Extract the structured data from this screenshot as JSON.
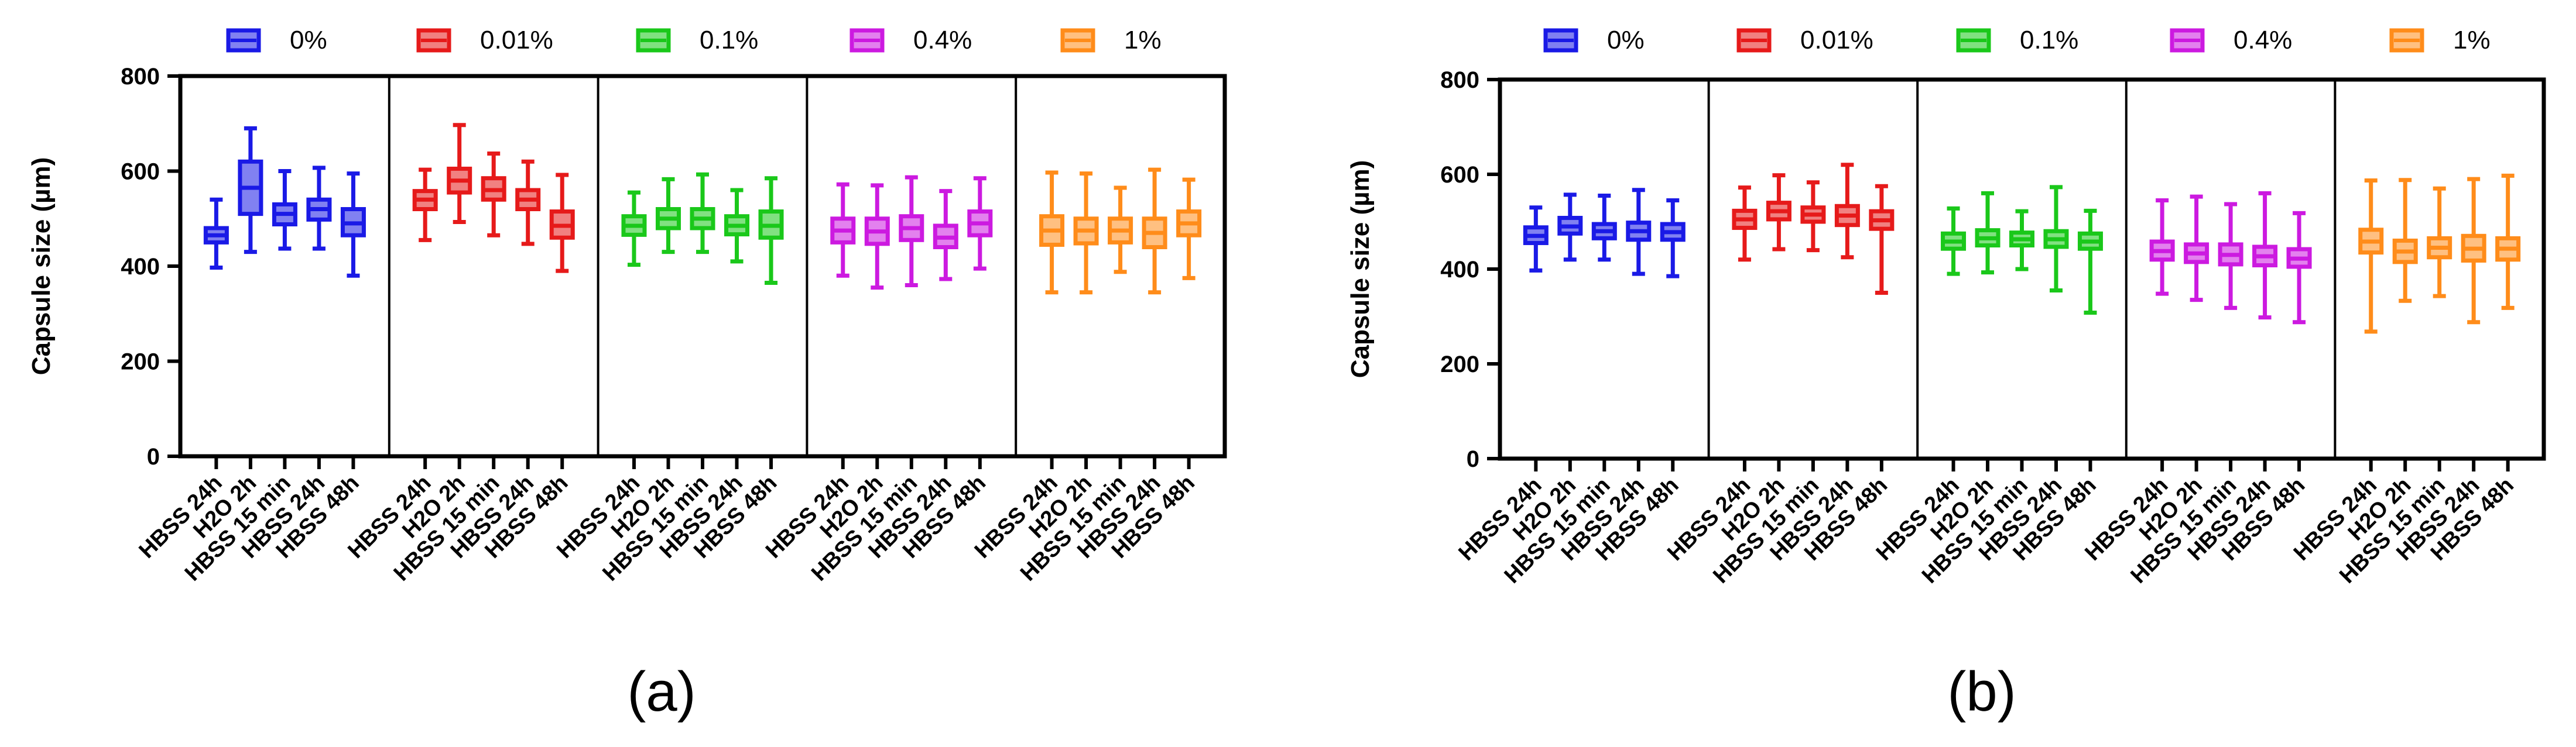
{
  "colors": {
    "0%": "#1a1ae6",
    "0.01%": "#e61a1a",
    "0.1%": "#1ac81a",
    "0.4%": "#cc1ae0",
    "1%": "#ff8c1a"
  },
  "chart_data": [
    {
      "type": "box",
      "caption": "(a)",
      "ylabel": "Capsule size (µm)",
      "xlabel": "",
      "ylim": [
        0,
        800
      ],
      "yticks": [
        0,
        200,
        400,
        600,
        800
      ],
      "legend": [
        "0%",
        "0.01%",
        "0.1%",
        "0.4%",
        "1%"
      ],
      "categories": [
        "HBSS 24h",
        "H2O 2h",
        "HBSS 15 min",
        "HBSS 24h",
        "HBSS 48h"
      ],
      "groups": [
        {
          "name": "0%",
          "boxes": [
            {
              "min": 397,
              "q1": 450,
              "median": 465,
              "q3": 480,
              "max": 540
            },
            {
              "min": 430,
              "q1": 510,
              "median": 565,
              "q3": 620,
              "max": 690
            },
            {
              "min": 437,
              "q1": 488,
              "median": 510,
              "q3": 530,
              "max": 600
            },
            {
              "min": 437,
              "q1": 498,
              "median": 520,
              "q3": 540,
              "max": 607
            },
            {
              "min": 380,
              "q1": 465,
              "median": 490,
              "q3": 520,
              "max": 595
            }
          ]
        },
        {
          "name": "0.01%",
          "boxes": [
            {
              "min": 455,
              "q1": 520,
              "median": 540,
              "q3": 558,
              "max": 603
            },
            {
              "min": 493,
              "q1": 555,
              "median": 580,
              "q3": 605,
              "max": 697
            },
            {
              "min": 465,
              "q1": 540,
              "median": 560,
              "q3": 585,
              "max": 637
            },
            {
              "min": 447,
              "q1": 520,
              "median": 540,
              "q3": 560,
              "max": 620
            },
            {
              "min": 390,
              "q1": 460,
              "median": 485,
              "q3": 515,
              "max": 592
            }
          ]
        },
        {
          "name": "0.1%",
          "boxes": [
            {
              "min": 403,
              "q1": 466,
              "median": 485,
              "q3": 505,
              "max": 555
            },
            {
              "min": 430,
              "q1": 480,
              "median": 500,
              "q3": 520,
              "max": 583
            },
            {
              "min": 430,
              "q1": 480,
              "median": 500,
              "q3": 520,
              "max": 593
            },
            {
              "min": 410,
              "q1": 467,
              "median": 485,
              "q3": 505,
              "max": 560
            },
            {
              "min": 365,
              "q1": 460,
              "median": 485,
              "q3": 515,
              "max": 585
            }
          ]
        },
        {
          "name": "0.4%",
          "boxes": [
            {
              "min": 380,
              "q1": 450,
              "median": 475,
              "q3": 500,
              "max": 572
            },
            {
              "min": 355,
              "q1": 447,
              "median": 473,
              "q3": 500,
              "max": 570
            },
            {
              "min": 360,
              "q1": 455,
              "median": 480,
              "q3": 505,
              "max": 587
            },
            {
              "min": 373,
              "q1": 440,
              "median": 460,
              "q3": 485,
              "max": 558
            },
            {
              "min": 395,
              "q1": 465,
              "median": 490,
              "q3": 515,
              "max": 585
            }
          ]
        },
        {
          "name": "1%",
          "boxes": [
            {
              "min": 345,
              "q1": 445,
              "median": 475,
              "q3": 505,
              "max": 597
            },
            {
              "min": 345,
              "q1": 448,
              "median": 475,
              "q3": 500,
              "max": 595
            },
            {
              "min": 388,
              "q1": 450,
              "median": 475,
              "q3": 500,
              "max": 565
            },
            {
              "min": 345,
              "q1": 440,
              "median": 470,
              "q3": 500,
              "max": 603
            },
            {
              "min": 375,
              "q1": 465,
              "median": 490,
              "q3": 515,
              "max": 582
            }
          ]
        }
      ]
    },
    {
      "type": "box",
      "caption": "(b)",
      "ylabel": "Capsule size (µm)",
      "xlabel": "",
      "ylim": [
        0,
        800
      ],
      "yticks": [
        0,
        200,
        400,
        600,
        800
      ],
      "legend": [
        "0%",
        "0.01%",
        "0.1%",
        "0.4%",
        "1%"
      ],
      "categories": [
        "HBSS 24h",
        "H2O 2h",
        "HBSS 15 min",
        "HBSS 24h",
        "HBSS 48h"
      ],
      "groups": [
        {
          "name": "0%",
          "boxes": [
            {
              "min": 397,
              "q1": 455,
              "median": 470,
              "q3": 488,
              "max": 530
            },
            {
              "min": 420,
              "q1": 475,
              "median": 490,
              "q3": 508,
              "max": 557
            },
            {
              "min": 420,
              "q1": 465,
              "median": 480,
              "q3": 495,
              "max": 555
            },
            {
              "min": 390,
              "q1": 462,
              "median": 480,
              "q3": 498,
              "max": 567
            },
            {
              "min": 385,
              "q1": 462,
              "median": 478,
              "q3": 495,
              "max": 545
            }
          ]
        },
        {
          "name": "0.01%",
          "boxes": [
            {
              "min": 420,
              "q1": 487,
              "median": 505,
              "q3": 523,
              "max": 572
            },
            {
              "min": 442,
              "q1": 505,
              "median": 522,
              "q3": 540,
              "max": 598
            },
            {
              "min": 440,
              "q1": 500,
              "median": 515,
              "q3": 530,
              "max": 583
            },
            {
              "min": 425,
              "q1": 493,
              "median": 513,
              "q3": 533,
              "max": 620
            },
            {
              "min": 350,
              "q1": 485,
              "median": 503,
              "q3": 522,
              "max": 575
            }
          ]
        },
        {
          "name": "0.1%",
          "boxes": [
            {
              "min": 390,
              "q1": 443,
              "median": 458,
              "q3": 475,
              "max": 528
            },
            {
              "min": 393,
              "q1": 450,
              "median": 465,
              "q3": 482,
              "max": 560
            },
            {
              "min": 400,
              "q1": 450,
              "median": 463,
              "q3": 477,
              "max": 522
            },
            {
              "min": 355,
              "q1": 447,
              "median": 463,
              "q3": 480,
              "max": 573
            },
            {
              "min": 308,
              "q1": 443,
              "median": 458,
              "q3": 475,
              "max": 523
            }
          ]
        },
        {
          "name": "0.4%",
          "boxes": [
            {
              "min": 348,
              "q1": 420,
              "median": 438,
              "q3": 458,
              "max": 545
            },
            {
              "min": 335,
              "q1": 415,
              "median": 433,
              "q3": 452,
              "max": 553
            },
            {
              "min": 318,
              "q1": 410,
              "median": 430,
              "q3": 452,
              "max": 537
            },
            {
              "min": 298,
              "q1": 408,
              "median": 427,
              "q3": 447,
              "max": 560
            },
            {
              "min": 288,
              "q1": 405,
              "median": 422,
              "q3": 442,
              "max": 518
            }
          ]
        },
        {
          "name": "1%",
          "boxes": [
            {
              "min": 268,
              "q1": 435,
              "median": 458,
              "q3": 483,
              "max": 587
            },
            {
              "min": 333,
              "q1": 415,
              "median": 437,
              "q3": 460,
              "max": 588
            },
            {
              "min": 343,
              "q1": 425,
              "median": 445,
              "q3": 465,
              "max": 570
            },
            {
              "min": 288,
              "q1": 418,
              "median": 443,
              "q3": 470,
              "max": 590
            },
            {
              "min": 318,
              "q1": 420,
              "median": 443,
              "q3": 465,
              "max": 597
            }
          ]
        }
      ]
    }
  ]
}
